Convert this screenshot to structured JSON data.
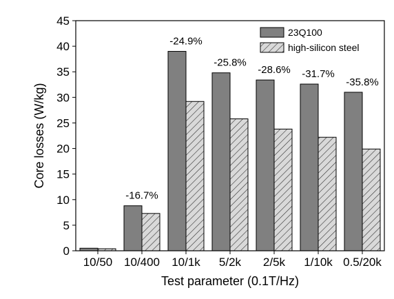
{
  "chart_data": {
    "type": "bar",
    "xlabel": "Test parameter (0.1T/Hz)",
    "ylabel": "Core losses (W/kg)",
    "ylim": [
      0,
      45
    ],
    "yticks": [
      0,
      5,
      10,
      15,
      20,
      25,
      30,
      35,
      40,
      45
    ],
    "grid": false,
    "legend_position": "top-right",
    "categories": [
      "10/50",
      "10/400",
      "10/1k",
      "5/2k",
      "2/5k",
      "1/10k",
      "0.5/20k"
    ],
    "series": [
      {
        "name": "23Q100",
        "values": [
          0.5,
          8.8,
          39.0,
          34.8,
          33.4,
          32.6,
          31.0
        ],
        "color": "#808080",
        "pattern": "solid"
      },
      {
        "name": "high-silicon steel",
        "values": [
          0.4,
          7.3,
          29.2,
          25.8,
          23.8,
          22.2,
          19.9
        ],
        "color": "#d9d9d9",
        "pattern": "hatch"
      }
    ],
    "annotations": [
      "",
      "-16.7%",
      "-24.9%",
      "-25.8%",
      "-28.6%",
      "-31.7%",
      "-35.8%"
    ]
  }
}
